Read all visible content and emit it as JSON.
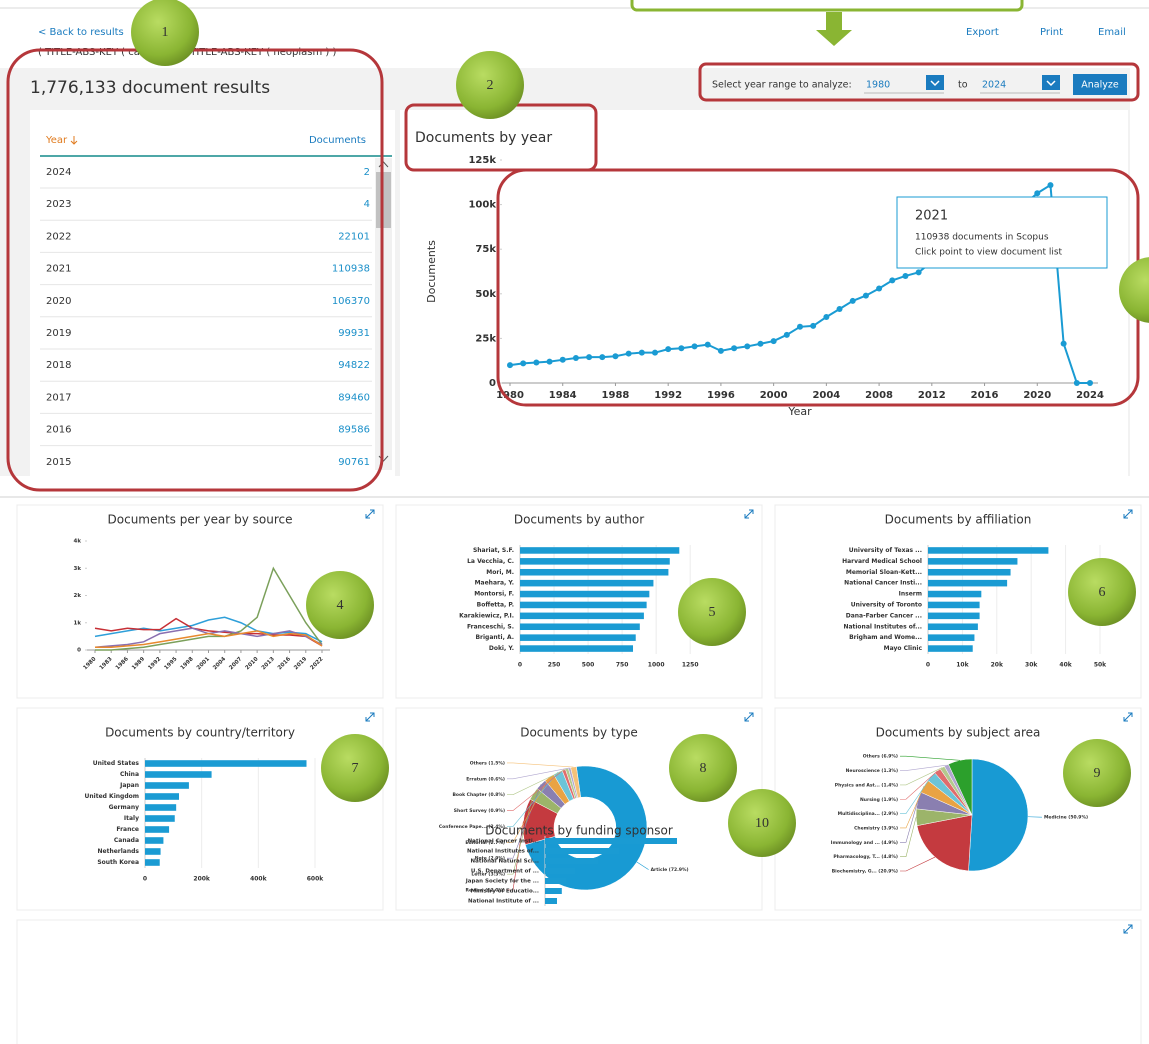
{
  "header": {
    "back_link": "< Back to results",
    "query": "( TITLE-ABS-KEY ( cancer ) OR TITLE-ABS-KEY ( neoplasm ) )",
    "actions": [
      "Export",
      "Print",
      "Email"
    ]
  },
  "year_range": {
    "label": "Select year range to analyze:",
    "from": "1980",
    "to_label": "to",
    "to": "2024",
    "button": "Analyze"
  },
  "results_title": "1,776,133 document results",
  "table": {
    "headers": [
      "Year",
      "Documents"
    ],
    "rows": [
      [
        2024,
        2
      ],
      [
        2023,
        4
      ],
      [
        2022,
        22101
      ],
      [
        2021,
        110938
      ],
      [
        2020,
        106370
      ],
      [
        2019,
        99931
      ],
      [
        2018,
        94822
      ],
      [
        2017,
        89460
      ],
      [
        2016,
        89586
      ],
      [
        2015,
        90761
      ]
    ]
  },
  "callouts": [
    "1",
    "2",
    "4",
    "5",
    "6",
    "7",
    "8",
    "9",
    "10"
  ],
  "tooltip": {
    "title": "2021",
    "line1": "110938 documents in Scopus",
    "line2": "Click point to view document list"
  },
  "chart_data": [
    {
      "type": "line",
      "title": "Documents by year",
      "xlabel": "Year",
      "ylabel": "Documents",
      "color": "#1a9bd3",
      "x": [
        1980,
        1981,
        1982,
        1983,
        1984,
        1985,
        1986,
        1987,
        1988,
        1989,
        1990,
        1991,
        1992,
        1993,
        1994,
        1995,
        1996,
        1997,
        1998,
        1999,
        2000,
        2001,
        2002,
        2003,
        2004,
        2005,
        2006,
        2007,
        2008,
        2009,
        2010,
        2011,
        2012,
        2013,
        2014,
        2015,
        2016,
        2017,
        2018,
        2019,
        2020,
        2021,
        2022,
        2023,
        2024
      ],
      "values": [
        10000,
        11000,
        11500,
        12000,
        13000,
        14000,
        14500,
        14500,
        15000,
        16500,
        17000,
        17000,
        19000,
        19500,
        20500,
        21500,
        18000,
        19500,
        20500,
        22000,
        23500,
        27000,
        31500,
        32000,
        37000,
        41500,
        46000,
        49000,
        53000,
        57500,
        60000,
        62000,
        68000,
        75000,
        83000,
        90761,
        89586,
        89460,
        94822,
        99931,
        106370,
        110938,
        22101,
        4,
        2
      ],
      "xlim": [
        1980,
        2024
      ],
      "ylim": [
        0,
        125000
      ],
      "xticks": [
        1980,
        1984,
        1988,
        1992,
        1996,
        2000,
        2004,
        2008,
        2012,
        2016,
        2020,
        2024
      ],
      "yticks": [
        0,
        {
          "value": 25000,
          "label": "25k"
        },
        {
          "value": 50000,
          "label": "50k"
        },
        {
          "value": 75000,
          "label": "75k"
        },
        {
          "value": 100000,
          "label": "100k"
        },
        {
          "value": 125000,
          "label": "125k"
        }
      ]
    },
    {
      "type": "line",
      "title": "Documents per year by source",
      "x": [
        1980,
        1983,
        1986,
        1989,
        1992,
        1995,
        1998,
        2001,
        2004,
        2007,
        2010,
        2013,
        2016,
        2019,
        2022
      ],
      "series": [
        {
          "color": "#2e9fd9",
          "values": [
            500,
            600,
            700,
            800,
            700,
            800,
            900,
            1100,
            1200,
            1000,
            700,
            600,
            650,
            600,
            300
          ]
        },
        {
          "color": "#c62f35",
          "values": [
            800,
            700,
            800,
            750,
            750,
            1150,
            800,
            700,
            650,
            600,
            600,
            550,
            550,
            500,
            150
          ]
        },
        {
          "color": "#7ba05b",
          "values": [
            0,
            0,
            50,
            100,
            200,
            300,
            400,
            500,
            500,
            700,
            1200,
            3000,
            2000,
            1000,
            200
          ]
        },
        {
          "color": "#8a6fb0",
          "values": [
            100,
            150,
            200,
            300,
            600,
            700,
            800,
            600,
            700,
            600,
            500,
            600,
            700,
            500,
            200
          ]
        },
        {
          "color": "#e8892d",
          "values": [
            100,
            100,
            150,
            200,
            300,
            400,
            500,
            600,
            500,
            600,
            700,
            500,
            600,
            550,
            150
          ]
        }
      ],
      "xlim": [
        1980,
        2022
      ],
      "ylim": [
        0,
        4000
      ],
      "xticks": [
        1980,
        1983,
        1986,
        1989,
        1992,
        1995,
        1998,
        2001,
        2004,
        2007,
        2010,
        2013,
        2016,
        2019,
        2022
      ],
      "yticks": [
        0,
        {
          "value": 1000,
          "label": "1k"
        },
        {
          "value": 2000,
          "label": "2k"
        },
        {
          "value": 3000,
          "label": "3k"
        },
        {
          "value": 4000,
          "label": "4k"
        }
      ]
    },
    {
      "type": "hbar",
      "title": "Documents by author",
      "color": "#1a9bd3",
      "grid": true,
      "categories": [
        "Shariat, S.F.",
        "La Vecchia, C.",
        "Mori, M.",
        "Maehara, Y.",
        "Montorsi, F.",
        "Boffetta, P.",
        "Karakiewicz, P.I.",
        "Franceschi, S.",
        "Briganti, A.",
        "Doki, Y."
      ],
      "values": [
        1170,
        1100,
        1090,
        980,
        950,
        930,
        910,
        880,
        850,
        830
      ],
      "xlim": [
        0,
        1300
      ],
      "xticks": [
        0,
        250,
        500,
        750,
        1000,
        1250
      ]
    },
    {
      "type": "hbar",
      "title": "Documents by affiliation",
      "color": "#1a9bd3",
      "grid": true,
      "categories": [
        "University of Texas ...",
        "Harvard Medical School",
        "Memorial Sloan-Kett...",
        "National Cancer Insti...",
        "Inserm",
        "University of Toronto",
        "Dana-Farber Cancer ...",
        "National Institutes of...",
        "Brigham and Wome...",
        "Mayo Clinic"
      ],
      "values": [
        35000,
        26000,
        24000,
        23000,
        15500,
        15000,
        15000,
        14500,
        13500,
        13000
      ],
      "xlim": [
        0,
        50000
      ],
      "xticks": [
        0,
        {
          "value": 10000,
          "label": "10k"
        },
        {
          "value": 20000,
          "label": "20k"
        },
        {
          "value": 30000,
          "label": "30k"
        },
        {
          "value": 40000,
          "label": "40k"
        },
        {
          "value": 50000,
          "label": "50k"
        }
      ]
    },
    {
      "type": "hbar",
      "title": "Documents by country/territory",
      "color": "#1a9bd3",
      "grid": true,
      "categories": [
        "United States",
        "China",
        "Japan",
        "United Kingdom",
        "Germany",
        "Italy",
        "France",
        "Canada",
        "Netherlands",
        "South Korea"
      ],
      "values": [
        570000,
        235000,
        155000,
        120000,
        110000,
        105000,
        85000,
        65000,
        55000,
        52000
      ],
      "xlim": [
        0,
        600000
      ],
      "xticks": [
        0,
        {
          "value": 200000,
          "label": "200k"
        },
        {
          "value": 400000,
          "label": "400k"
        },
        {
          "value": 600000,
          "label": "600k"
        }
      ]
    },
    {
      "type": "donut",
      "title": "Documents by type",
      "categories": [
        "Article (72.9%)",
        "Review (12.0%)",
        "Letter (3.3%)",
        "Note (2.9%)",
        "Editorial (2.7%)",
        "Conference Pape... (2.4%)",
        "Short Survey (0.9%)",
        "Book Chapter (0.8%)",
        "Erratum (0.6%)",
        "Others (1.5%)"
      ],
      "values": [
        72.9,
        12.0,
        3.3,
        2.9,
        2.7,
        2.4,
        0.9,
        0.8,
        0.6,
        1.5
      ],
      "colors": [
        "#189ad3",
        "#c43a3f",
        "#9cb46a",
        "#8a7fb0",
        "#e9a344",
        "#6cc4d8",
        "#e06c6c",
        "#b4c98e",
        "#b1a7cf",
        "#f5c27a"
      ]
    },
    {
      "type": "pie",
      "title": "Documents by subject area",
      "categories": [
        "Medicine (50.9%)",
        "Biochemistry, G... (20.9%)",
        "Pharmacology, T... (4.8%)",
        "Immunology and ... (4.9%)",
        "Chemistry (3.9%)",
        "Multidisciplina... (2.9%)",
        "Nursing (1.9%)",
        "Physics and Ast... (1.4%)",
        "Neuroscience (1.3%)",
        "Others (6.9%)"
      ],
      "values": [
        50.9,
        20.9,
        4.8,
        4.9,
        3.9,
        2.9,
        1.9,
        1.4,
        1.3,
        6.9
      ],
      "colors": [
        "#189ad3",
        "#c43a3f",
        "#9cb46a",
        "#8a7fb0",
        "#e9a344",
        "#6cc4d8",
        "#e06c6c",
        "#b4c98e",
        "#b1a7cf",
        "#2ca02c"
      ]
    },
    {
      "type": "hbar",
      "title": "Documents by funding sponsor",
      "color": "#1a9bd3",
      "categories": [
        "National Cancer Insti...",
        "National Institutes of...",
        "National Natural Sci...",
        "U.S. Department of ...",
        "Japan Society for the ...",
        "Ministry of Educatio...",
        "National Institute of ..."
      ],
      "values": [
        165000,
        93000,
        67000,
        38000,
        27000,
        21000,
        15000
      ],
      "xlim": [
        0,
        200000
      ]
    }
  ]
}
